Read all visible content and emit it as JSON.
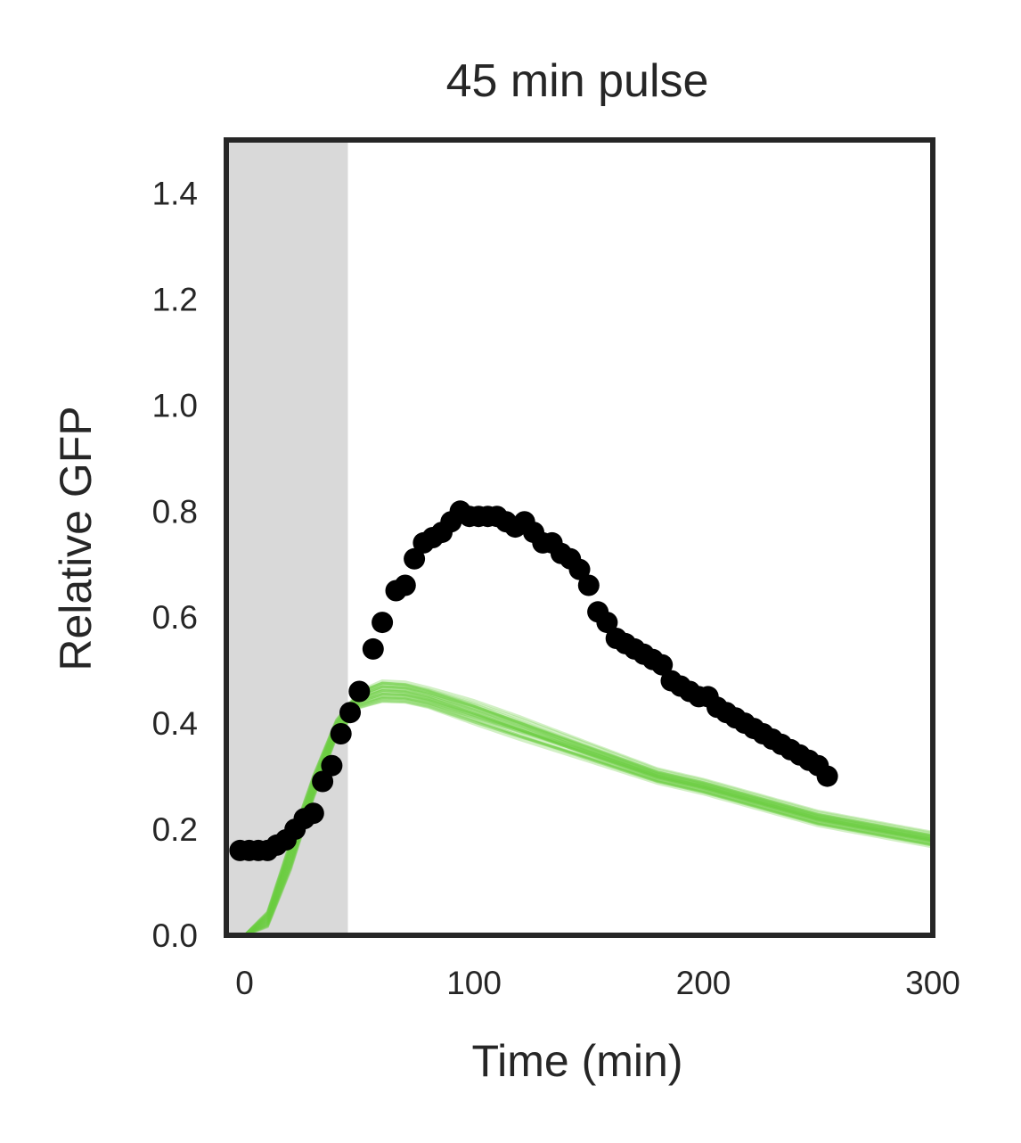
{
  "chart_data": {
    "type": "line",
    "title": "45 min pulse",
    "xlabel": "Time (min)",
    "ylabel": "Relative GFP",
    "xlim": [
      -8,
      300
    ],
    "ylim": [
      0,
      1.5
    ],
    "xticks": [
      0,
      100,
      200,
      300
    ],
    "xtick_labels": [
      "0",
      "100",
      "200",
      "300"
    ],
    "yticks": [
      0,
      0.2,
      0.4,
      0.6,
      0.8,
      1.0,
      1.2,
      1.4
    ],
    "ytick_labels": [
      "0.0",
      "0.2",
      "0.4",
      "0.6",
      "0.8",
      "1.0",
      "1.2",
      "1.4"
    ],
    "grid": false,
    "pulse_region": {
      "x_start": -8,
      "x_end": 45,
      "color": "#d9d9d9"
    },
    "colors": {
      "measured": "#000000",
      "simulated": "#6acc3f",
      "frame": "#262626"
    },
    "simulated_ensemble": {
      "count": 30,
      "opacity": 0.3,
      "x": [
        0,
        10,
        20,
        30,
        40,
        50,
        60,
        70,
        80,
        100,
        120,
        150,
        180,
        200,
        250,
        300
      ],
      "y_center": [
        0.0,
        0.03,
        0.15,
        0.28,
        0.39,
        0.445,
        0.46,
        0.458,
        0.448,
        0.42,
        0.39,
        0.345,
        0.3,
        0.28,
        0.22,
        0.18
      ],
      "y_spread": [
        0.0,
        0.015,
        0.03,
        0.025,
        0.02,
        0.02,
        0.025,
        0.025,
        0.025,
        0.03,
        0.03,
        0.025,
        0.02,
        0.02,
        0.02,
        0.02
      ]
    },
    "measured": {
      "x": [
        -2,
        2,
        6,
        10,
        14,
        18,
        22,
        26,
        30,
        34,
        38,
        42,
        46,
        50,
        56,
        60,
        66,
        70,
        74,
        78,
        82,
        86,
        90,
        94,
        98,
        102,
        106,
        110,
        114,
        118,
        122,
        126,
        130,
        134,
        138,
        142,
        146,
        150,
        154,
        158,
        162,
        166,
        170,
        174,
        178,
        182,
        186,
        190,
        194,
        198,
        202,
        206,
        210,
        214,
        218,
        222,
        226,
        230,
        234,
        238,
        242,
        246,
        250,
        254
      ],
      "y": [
        0.16,
        0.16,
        0.16,
        0.16,
        0.17,
        0.18,
        0.2,
        0.22,
        0.23,
        0.29,
        0.32,
        0.38,
        0.42,
        0.46,
        0.54,
        0.59,
        0.65,
        0.66,
        0.71,
        0.74,
        0.75,
        0.76,
        0.78,
        0.8,
        0.79,
        0.79,
        0.79,
        0.79,
        0.78,
        0.77,
        0.78,
        0.76,
        0.74,
        0.74,
        0.72,
        0.71,
        0.69,
        0.66,
        0.61,
        0.59,
        0.56,
        0.55,
        0.54,
        0.53,
        0.52,
        0.51,
        0.48,
        0.47,
        0.46,
        0.45,
        0.45,
        0.43,
        0.42,
        0.41,
        0.4,
        0.39,
        0.38,
        0.37,
        0.36,
        0.35,
        0.34,
        0.33,
        0.32,
        0.3
      ]
    }
  }
}
